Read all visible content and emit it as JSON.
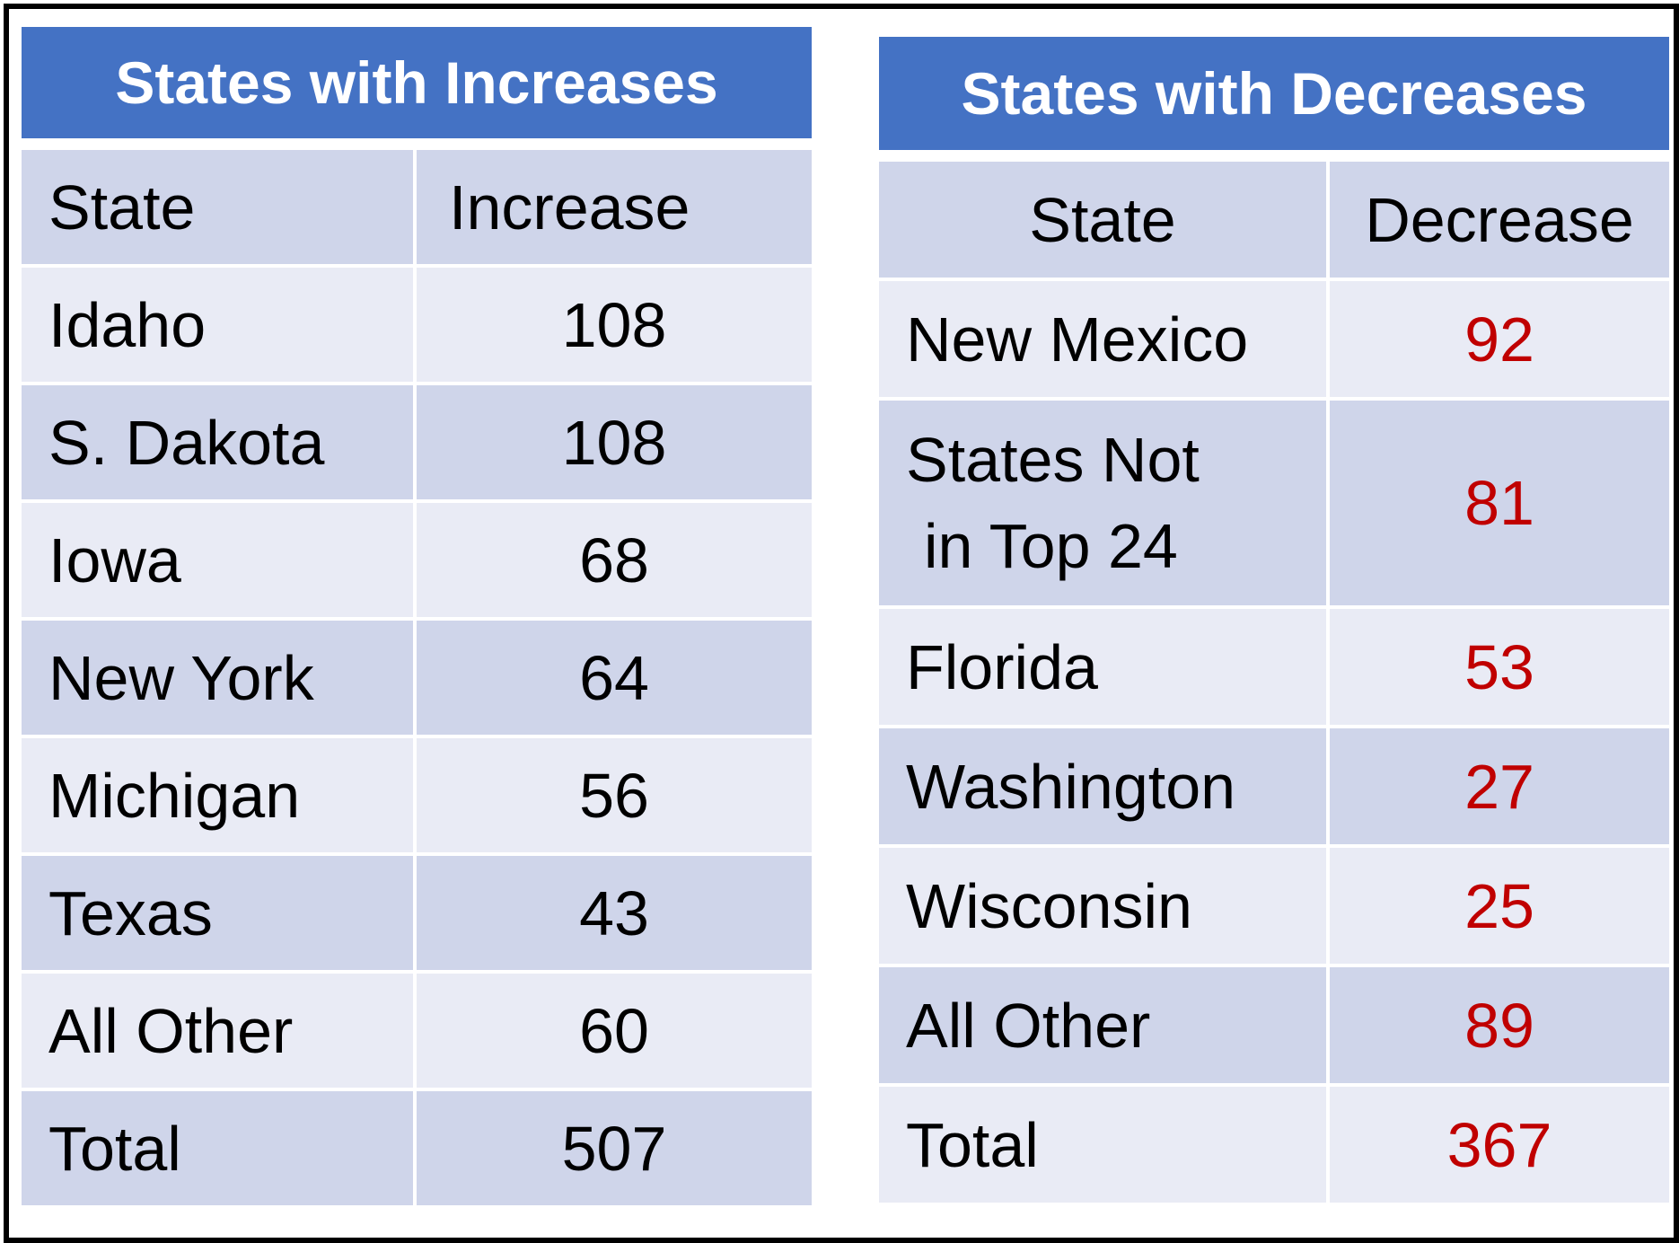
{
  "chart_data": [
    {
      "type": "table",
      "title": "States with Increases",
      "columns": [
        "State",
        "Increase"
      ],
      "rows": [
        {
          "state": "Idaho",
          "value": "108"
        },
        {
          "state": "S. Dakota",
          "value": "108"
        },
        {
          "state": "Iowa",
          "value": "68"
        },
        {
          "state": "New York",
          "value": "64"
        },
        {
          "state": "Michigan",
          "value": "56"
        },
        {
          "state": "Texas",
          "value": "43"
        },
        {
          "state": "All Other",
          "value": "60"
        },
        {
          "state": "Total",
          "value": "507"
        }
      ]
    },
    {
      "type": "table",
      "title": "States with Decreases",
      "columns": [
        "State",
        "Decrease"
      ],
      "rows": [
        {
          "state": "New Mexico",
          "value": "92"
        },
        {
          "state_line1": "States Not",
          "state_line2": "in Top 24",
          "value": "81"
        },
        {
          "state": "Florida",
          "value": "53"
        },
        {
          "state": "Washington",
          "value": "27"
        },
        {
          "state": "Wisconsin",
          "value": "25"
        },
        {
          "state": "All Other",
          "value": "89"
        },
        {
          "state": "Total",
          "value": "367"
        }
      ],
      "value_color": "#c00000"
    }
  ],
  "colors": {
    "title_bg": "#4472c4",
    "row_dark": "#cfd5ea",
    "row_light": "#e9ebf5"
  }
}
